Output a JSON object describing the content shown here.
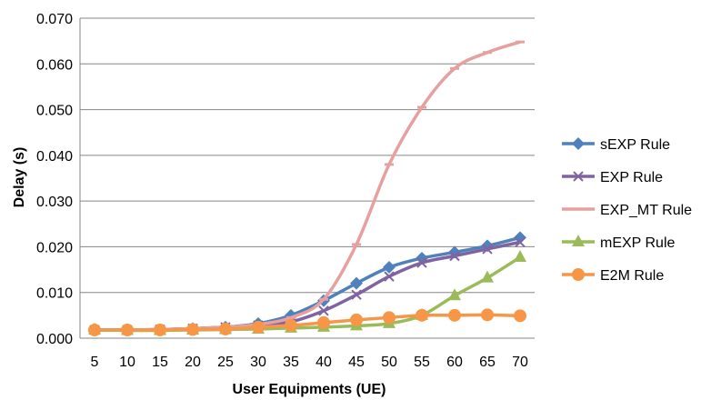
{
  "chart_data": {
    "type": "line",
    "xlabel": "User Equipments (UE)",
    "ylabel": "Delay (s)",
    "ylim": [
      0,
      0.07
    ],
    "y_ticks": [
      "0.000",
      "0.010",
      "0.020",
      "0.030",
      "0.040",
      "0.050",
      "0.060",
      "0.070"
    ],
    "y_tick_values": [
      0,
      0.01,
      0.02,
      0.03,
      0.04,
      0.05,
      0.06,
      0.07
    ],
    "x": [
      5,
      10,
      15,
      20,
      25,
      30,
      35,
      40,
      45,
      50,
      55,
      60,
      65,
      70
    ],
    "grid": "horizontal",
    "legend_position": "right",
    "series": [
      {
        "name": "sEXP Rule",
        "color": "#4F81BD",
        "marker": "diamond",
        "values": [
          0.0018,
          0.0018,
          0.0019,
          0.0021,
          0.0024,
          0.0032,
          0.005,
          0.0082,
          0.012,
          0.0155,
          0.0175,
          0.0188,
          0.0202,
          0.022
        ]
      },
      {
        "name": "EXP Rule",
        "color": "#8064A2",
        "marker": "x",
        "values": [
          0.0018,
          0.0018,
          0.0019,
          0.0021,
          0.0024,
          0.0028,
          0.0036,
          0.006,
          0.0095,
          0.0135,
          0.0165,
          0.018,
          0.0195,
          0.021
        ]
      },
      {
        "name": "EXP_MT Rule",
        "color": "#E6A0A0",
        "marker": "dash",
        "values": [
          0.0018,
          0.0018,
          0.0019,
          0.0021,
          0.0024,
          0.003,
          0.0045,
          0.0085,
          0.0205,
          0.038,
          0.0505,
          0.059,
          0.0625,
          0.0648
        ]
      },
      {
        "name": "mEXP Rule",
        "color": "#9BBB59",
        "marker": "triangle",
        "values": [
          0.0018,
          0.0017,
          0.0017,
          0.0018,
          0.0019,
          0.002,
          0.0022,
          0.0024,
          0.0027,
          0.0032,
          0.005,
          0.0093,
          0.0132,
          0.0177
        ]
      },
      {
        "name": "E2M Rule",
        "color": "#F79646",
        "marker": "circle",
        "values": [
          0.0018,
          0.0018,
          0.0018,
          0.0019,
          0.002,
          0.0024,
          0.0028,
          0.0034,
          0.004,
          0.0045,
          0.005,
          0.005,
          0.0051,
          0.0049
        ]
      }
    ]
  }
}
